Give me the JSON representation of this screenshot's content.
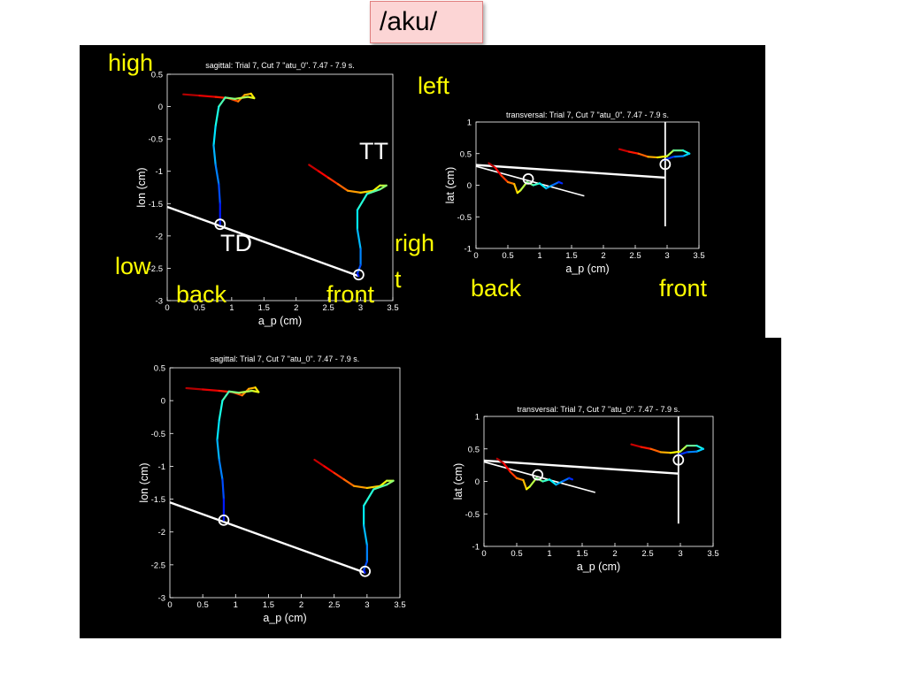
{
  "slide_title": "/aku/",
  "annotations": {
    "high": "high",
    "low": "low",
    "left": "left",
    "right_1": "righ",
    "right_2": "t",
    "back_sag": "back",
    "front_sag": "front",
    "back_tra": "back",
    "front_tra": "front",
    "tt": "TT",
    "td": "TD"
  },
  "colors": {
    "axis": "#ffffff",
    "background": "#000000",
    "annotation": "#ffff00"
  },
  "chart_data": [
    {
      "id": "sagittal-top",
      "type": "line",
      "title": "sagittal: Trial 7, Cut 7 \"atu_0\". 7.47 - 7.9 s.",
      "xlabel": "a_p (cm)",
      "ylabel": "lon (cm)",
      "xlim": [
        0,
        3.5
      ],
      "ylim": [
        -3,
        0.5
      ],
      "xticks": [
        "0",
        "0.5",
        "1",
        "1.5",
        "2",
        "2.5",
        "3",
        "3.5"
      ],
      "yticks": [
        "0.5",
        "0",
        "-0.5",
        "-1",
        "-1.5",
        "-2",
        "-2.5",
        "-3"
      ],
      "series": [
        {
          "x": [
            0.25,
            0.5,
            0.75,
            0.95,
            1.1,
            1.2,
            1.3,
            1.35,
            1.25,
            1.05,
            0.9,
            0.8,
            0.75,
            0.72,
            0.75,
            0.8,
            0.82,
            0.82
          ],
          "y": [
            0.19,
            0.17,
            0.15,
            0.13,
            0.08,
            0.18,
            0.2,
            0.13,
            0.15,
            0.12,
            0.14,
            0.0,
            -0.3,
            -0.6,
            -0.9,
            -1.2,
            -1.5,
            -1.82
          ]
        },
        {
          "x": [
            2.2,
            2.35,
            2.5,
            2.65,
            2.8,
            3.0,
            3.2,
            3.3,
            3.4,
            3.3,
            3.1,
            2.95,
            2.95,
            3.0,
            3.0,
            2.95,
            2.97
          ],
          "y": [
            -0.9,
            -1.0,
            -1.1,
            -1.2,
            -1.3,
            -1.33,
            -1.3,
            -1.22,
            -1.22,
            -1.28,
            -1.35,
            -1.6,
            -1.9,
            -2.2,
            -2.45,
            -2.58,
            -2.62
          ]
        }
      ],
      "line": {
        "x": [
          0,
          2.97
        ],
        "y": [
          -1.55,
          -2.62
        ]
      },
      "markers": [
        {
          "x": 0.82,
          "y": -1.82
        },
        {
          "x": 2.97,
          "y": -2.6
        }
      ]
    },
    {
      "id": "transversal-top",
      "type": "line",
      "title": "transversal: Trial 7, Cut 7 \"atu_0\". 7.47 - 7.9 s.",
      "xlabel": "a_p (cm)",
      "ylabel": "lat (cm)",
      "xlim": [
        0,
        3.5
      ],
      "ylim": [
        -1,
        1
      ],
      "xticks": [
        "0",
        "0.5",
        "1",
        "1.5",
        "2",
        "2.5",
        "3",
        "3.5"
      ],
      "yticks": [
        "1",
        "0.5",
        "0",
        "-0.5",
        "-1"
      ],
      "series": [
        {
          "x": [
            0.2,
            0.3,
            0.4,
            0.5,
            0.6,
            0.65,
            0.7,
            0.8,
            0.9,
            1.0,
            1.1,
            1.2,
            1.3,
            1.35
          ],
          "y": [
            0.35,
            0.28,
            0.15,
            0.05,
            0.02,
            -0.12,
            -0.08,
            0.05,
            0.0,
            0.03,
            -0.05,
            0.0,
            0.05,
            0.03
          ]
        },
        {
          "x": [
            2.25,
            2.4,
            2.55,
            2.7,
            2.85,
            3.0,
            3.1,
            3.25,
            3.35,
            3.25,
            3.1,
            2.95
          ],
          "y": [
            0.57,
            0.53,
            0.5,
            0.45,
            0.44,
            0.46,
            0.55,
            0.55,
            0.5,
            0.46,
            0.45,
            0.4
          ]
        }
      ],
      "line": {
        "x": [
          0,
          2.97
        ],
        "y": [
          0.32,
          0.12
        ]
      },
      "line2": {
        "x": [
          0,
          1.7
        ],
        "y": [
          0.3,
          -0.17
        ]
      },
      "vline": {
        "x": 2.97,
        "y": [
          -0.65,
          1.0
        ]
      },
      "markers": [
        {
          "x": 0.82,
          "y": 0.1
        },
        {
          "x": 2.97,
          "y": 0.33
        }
      ]
    },
    {
      "id": "sagittal-bottom",
      "type": "line",
      "title": "sagittal: Trial 7, Cut 7 \"atu_0\". 7.47 - 7.9 s.",
      "xlabel": "a_p (cm)",
      "ylabel": "lon (cm)",
      "xlim": [
        0,
        3.5
      ],
      "ylim": [
        -3,
        0.5
      ],
      "xticks": [
        "0",
        "0.5",
        "1",
        "1.5",
        "2",
        "2.5",
        "3",
        "3.5"
      ],
      "yticks": [
        "0.5",
        "0",
        "-0.5",
        "-1",
        "-1.5",
        "-2",
        "-2.5",
        "-3"
      ],
      "series": [
        {
          "x": [
            0.25,
            0.5,
            0.75,
            0.95,
            1.1,
            1.2,
            1.3,
            1.35,
            1.25,
            1.05,
            0.9,
            0.8,
            0.75,
            0.72,
            0.75,
            0.8,
            0.82,
            0.82
          ],
          "y": [
            0.19,
            0.17,
            0.15,
            0.13,
            0.08,
            0.18,
            0.2,
            0.13,
            0.15,
            0.12,
            0.14,
            0.0,
            -0.3,
            -0.6,
            -0.9,
            -1.2,
            -1.5,
            -1.82
          ]
        },
        {
          "x": [
            2.2,
            2.35,
            2.5,
            2.65,
            2.8,
            3.0,
            3.2,
            3.3,
            3.4,
            3.3,
            3.1,
            2.95,
            2.95,
            3.0,
            3.0,
            2.95,
            2.97
          ],
          "y": [
            -0.9,
            -1.0,
            -1.1,
            -1.2,
            -1.3,
            -1.33,
            -1.3,
            -1.22,
            -1.22,
            -1.28,
            -1.35,
            -1.6,
            -1.9,
            -2.2,
            -2.45,
            -2.58,
            -2.62
          ]
        }
      ],
      "line": {
        "x": [
          0,
          2.97
        ],
        "y": [
          -1.55,
          -2.62
        ]
      },
      "markers": [
        {
          "x": 0.82,
          "y": -1.82
        },
        {
          "x": 2.97,
          "y": -2.6
        }
      ]
    },
    {
      "id": "transversal-bottom",
      "type": "line",
      "title": "transversal: Trial 7, Cut 7 \"atu_0\". 7.47 - 7.9 s.",
      "xlabel": "a_p (cm)",
      "ylabel": "lat (cm)",
      "xlim": [
        0,
        3.5
      ],
      "ylim": [
        -1,
        1
      ],
      "xticks": [
        "0",
        "0.5",
        "1",
        "1.5",
        "2",
        "2.5",
        "3",
        "3.5"
      ],
      "yticks": [
        "1",
        "0.5",
        "0",
        "-0.5",
        "-1"
      ],
      "series": [
        {
          "x": [
            0.2,
            0.3,
            0.4,
            0.5,
            0.6,
            0.65,
            0.7,
            0.8,
            0.9,
            1.0,
            1.1,
            1.2,
            1.3,
            1.35
          ],
          "y": [
            0.35,
            0.28,
            0.15,
            0.05,
            0.02,
            -0.12,
            -0.08,
            0.05,
            0.0,
            0.03,
            -0.05,
            0.0,
            0.05,
            0.03
          ]
        },
        {
          "x": [
            2.25,
            2.4,
            2.55,
            2.7,
            2.85,
            3.0,
            3.1,
            3.25,
            3.35,
            3.25,
            3.1,
            2.95
          ],
          "y": [
            0.57,
            0.53,
            0.5,
            0.45,
            0.44,
            0.46,
            0.55,
            0.55,
            0.5,
            0.46,
            0.45,
            0.4
          ]
        }
      ],
      "line": {
        "x": [
          0,
          2.97
        ],
        "y": [
          0.32,
          0.12
        ]
      },
      "line2": {
        "x": [
          0,
          1.7
        ],
        "y": [
          0.3,
          -0.17
        ]
      },
      "vline": {
        "x": 2.97,
        "y": [
          -0.65,
          1.0
        ]
      },
      "markers": [
        {
          "x": 0.82,
          "y": 0.1
        },
        {
          "x": 2.97,
          "y": 0.33
        }
      ]
    }
  ]
}
